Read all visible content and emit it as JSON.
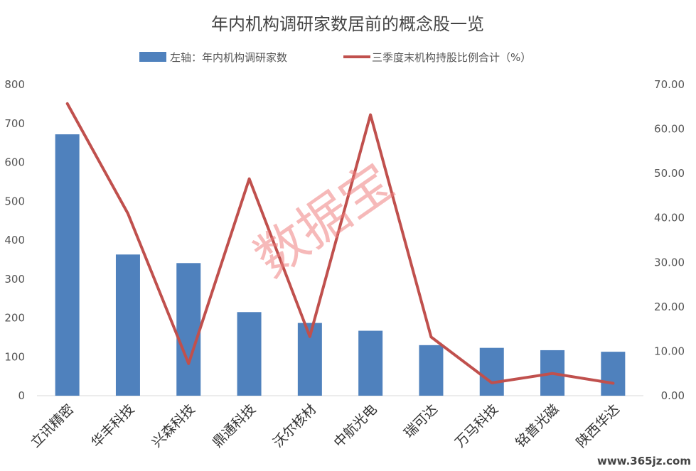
{
  "chart_data": {
    "type": "bar+line",
    "title": "年内机构调研家数居前的概念股一览",
    "categories": [
      "立讯精密",
      "华丰科技",
      "兴森科技",
      "鼎通科技",
      "沃尔核材",
      "中航光电",
      "瑞可达",
      "万马科技",
      "铭普光磁",
      "陕西华达"
    ],
    "series": [
      {
        "name": "左轴：年内机构调研家数",
        "type": "bar",
        "axis": "left",
        "color": "#4f81bd",
        "values": [
          672,
          363,
          341,
          215,
          187,
          167,
          130,
          123,
          117,
          113
        ]
      },
      {
        "name": "三季度末机构持股比例合计（%）",
        "type": "line",
        "axis": "right",
        "color": "#c0504d",
        "values": [
          65.7,
          41.0,
          7.2,
          48.8,
          13.3,
          63.2,
          13.2,
          2.9,
          5.0,
          2.8
        ]
      }
    ],
    "y_left": {
      "min": 0,
      "max": 800,
      "step": 100,
      "ticks": [
        "0",
        "100",
        "200",
        "300",
        "400",
        "500",
        "600",
        "700",
        "800"
      ]
    },
    "y_right": {
      "min": 0,
      "max": 70,
      "step": 10,
      "ticks": [
        "0.00",
        "10.00",
        "20.00",
        "30.00",
        "40.00",
        "50.00",
        "60.00",
        "70.00"
      ]
    },
    "grid": false,
    "legend": "top-center"
  },
  "watermark": "数据宝",
  "site_text": "www.365jz.com"
}
